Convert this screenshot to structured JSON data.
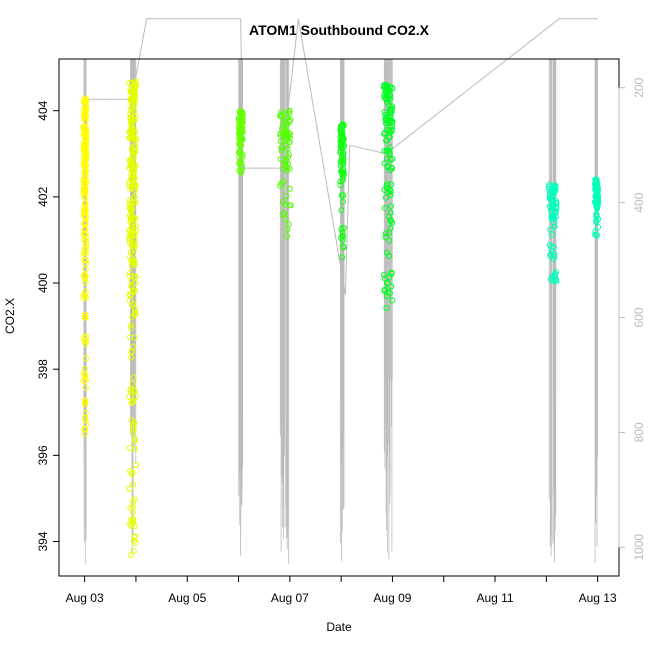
{
  "chart_data": {
    "type": "scatter",
    "title": "ATOM1 Southbound CO2.X",
    "xlabel": "Date",
    "ylabel": "CO2.X",
    "xlim": [
      "2013-08-02T12:00",
      "2013-08-13T10:00"
    ],
    "ylim": [
      393.2,
      405.2
    ],
    "x_ticks": [
      "Aug 03",
      "Aug 05",
      "Aug 07",
      "Aug 09",
      "Aug 11",
      "Aug 13"
    ],
    "y_ticks": [
      394,
      396,
      398,
      400,
      402,
      404
    ],
    "y2_label": "",
    "y2_ticks": [
      200,
      400,
      600,
      800,
      1000
    ],
    "y2_lim": [
      1050,
      150
    ],
    "legend": "none",
    "grid": false,
    "colors": {
      "yellow": "#ffff00",
      "yellow_green": "#ccff00",
      "green_yellow": "#55ff00",
      "green": "#00ff22",
      "cyan_green": "#00ffbb",
      "altitude_line": "#bbbbbb",
      "axis": "#000000",
      "right_axis": "#bbbbbb"
    },
    "series": [
      {
        "color": "#ffff00",
        "x": "2013-08-03T00:10",
        "y_min": 396.4,
        "y_max": 404.3,
        "x_spread_hours": 1.2
      },
      {
        "color": "#e6ff00",
        "x": "2013-08-03T22:30",
        "y_min": 393.6,
        "y_max": 404.7,
        "x_spread_hours": 3.0
      },
      {
        "color": "#66ff00",
        "x": "2013-08-06T01:00",
        "y_min": 402.5,
        "y_max": 404.0,
        "x_spread_hours": 1.8
      },
      {
        "color": "#55ff00",
        "x": "2013-08-06T22:00",
        "y_min": 401.0,
        "y_max": 404.0,
        "x_spread_hours": 5.0
      },
      {
        "color": "#11ff11",
        "x": "2013-08-08T00:30",
        "y_min": 400.6,
        "y_max": 403.7,
        "x_spread_hours": 1.8
      },
      {
        "color": "#00ff22",
        "x": "2013-08-08T22:00",
        "y_min": 399.4,
        "y_max": 404.6,
        "x_spread_hours": 4.0
      },
      {
        "color": "#00ffbb",
        "x": "2013-08-12T03:00",
        "y_min": 400.0,
        "y_max": 402.3,
        "x_spread_hours": 3.5
      },
      {
        "color": "#00ffbb",
        "x": "2013-08-12T23:30",
        "y_min": 401.1,
        "y_max": 402.4,
        "x_spread_hours": 1.5
      }
    ],
    "altitude_track": [
      {
        "x": "2013-08-03T00:00",
        "alt": 780
      },
      {
        "x": "2013-08-03T01:00",
        "alt": 220
      },
      {
        "x": "2013-08-03T22:00",
        "alt": 220
      },
      {
        "x": "2013-08-04T05:00",
        "alt": 80
      },
      {
        "x": "2013-08-06T01:00",
        "alt": 80
      },
      {
        "x": "2013-08-06T02:00",
        "alt": 340
      },
      {
        "x": "2013-08-06T20:00",
        "alt": 340
      },
      {
        "x": "2013-08-07T04:00",
        "alt": 80
      },
      {
        "x": "2013-08-08T02:00",
        "alt": 560
      },
      {
        "x": "2013-08-08T04:00",
        "alt": 300
      },
      {
        "x": "2013-08-08T21:00",
        "alt": 315
      },
      {
        "x": "2013-08-12T06:00",
        "alt": 80
      },
      {
        "x": "2013-08-13T00:00",
        "alt": 80
      }
    ]
  }
}
